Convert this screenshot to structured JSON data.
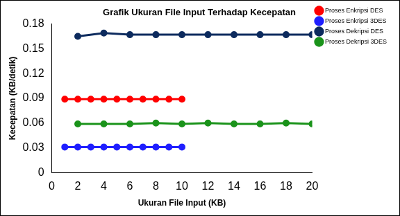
{
  "chart_data": {
    "type": "line",
    "title": "Grafik Ukuran File Input Terhadap Kecepatan",
    "x_label": "Ukuran File Input (KB)",
    "y_label": "Kecepatan (KB/detik)",
    "xlim": [
      0,
      20
    ],
    "xticks": [
      0,
      2,
      4,
      6,
      8,
      10,
      12,
      14,
      16,
      18,
      20
    ],
    "ylim": [
      0,
      0.18
    ],
    "yticks": [
      0,
      0.03,
      0.06,
      0.09,
      0.12,
      0.15,
      0.18
    ],
    "grid": false,
    "legend": "right",
    "series": [
      {
        "name": "Proses Enkripsi DES",
        "color": "#ff0000",
        "marker": "circle",
        "line_style": "solid",
        "x": [
          1,
          2,
          3,
          4,
          5,
          6,
          7,
          8,
          9,
          10
        ],
        "values": [
          0.089,
          0.089,
          0.089,
          0.089,
          0.089,
          0.089,
          0.089,
          0.089,
          0.089,
          0.089
        ]
      },
      {
        "name": "Proses Enkripsi 3DES",
        "color": "#1f1fff",
        "marker": "circle",
        "line_style": "solid",
        "x": [
          1,
          2,
          3,
          4,
          5,
          6,
          7,
          8,
          9,
          10
        ],
        "values": [
          0.031,
          0.031,
          0.031,
          0.031,
          0.031,
          0.031,
          0.031,
          0.031,
          0.031,
          0.031
        ]
      },
      {
        "name": "Proses Dekripsi DES",
        "color": "#0d2b5e",
        "marker": "circle",
        "line_style": "solid",
        "x": [
          2,
          4,
          6,
          8,
          10,
          12,
          14,
          16,
          18,
          20
        ],
        "values": [
          0.165,
          0.169,
          0.167,
          0.167,
          0.167,
          0.167,
          0.167,
          0.167,
          0.167,
          0.167
        ]
      },
      {
        "name": "Proses Dekripsi 3DES",
        "color": "#1a931a",
        "marker": "circle",
        "line_style": "solid",
        "x": [
          2,
          4,
          6,
          8,
          10,
          12,
          14,
          16,
          18,
          20
        ],
        "values": [
          0.059,
          0.059,
          0.059,
          0.06,
          0.059,
          0.06,
          0.059,
          0.059,
          0.06,
          0.059
        ]
      }
    ]
  }
}
